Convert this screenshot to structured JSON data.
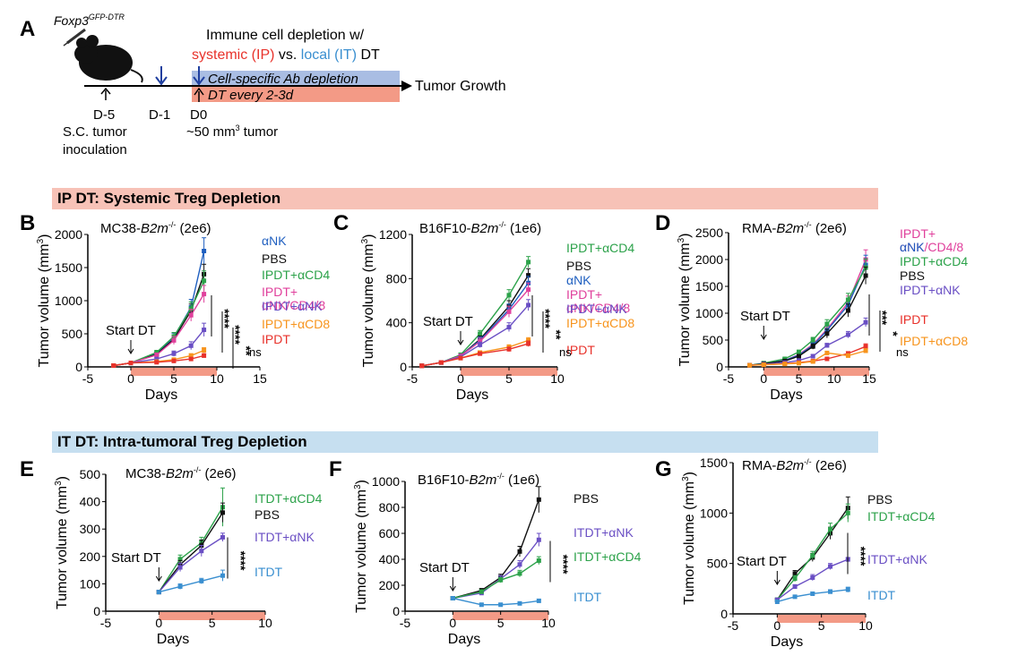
{
  "figure": {
    "panel_a": {
      "letter": "A",
      "mouse_label": "Foxp3",
      "mouse_label_sup": "GFP-DTR",
      "title_line1": "Immune cell depletion w/",
      "title_systemic": "systemic (IP)",
      "title_vs": " vs. ",
      "title_local": "local (IT)",
      "title_dt": " DT",
      "bar_ab": "Cell-specific Ab depletion",
      "bar_dt": "DT every 2-3d",
      "tumor_growth": "Tumor Growth",
      "day_m5": "D-5",
      "day_m1": "D-1",
      "day_0": "D0",
      "inoc_line1": "S.C. tumor",
      "inoc_line2": "inoculation",
      "tumor_size": "~50 mm",
      "tumor_size_sup": "3",
      "tumor_size_suffix": " tumor",
      "colors": {
        "systemic": "#e8322b",
        "local": "#3a8fd0",
        "ab_bar": "#a9bde3",
        "dt_bar": "#f39a86",
        "arrow": "#1f3f9f"
      }
    },
    "banner_ip": "IP DT: Systemic Treg Depletion",
    "banner_it": "IT DT: Intra-tumoral Treg Depletion"
  },
  "common": {
    "xlabel": "Days",
    "ylabel": "Tumor volume (mm",
    "ylabel_sup": "3",
    "ylabel_end": ")",
    "start_dt": "Start DT",
    "ns": "ns"
  },
  "chart_data": [
    {
      "panel": "B",
      "type": "line",
      "title_pre": "MC38-",
      "title_it": "B2m",
      "title_sup": "-/-",
      "title_post": " (2e6)",
      "xlim": [
        -5,
        15
      ],
      "ylim": [
        0,
        2000
      ],
      "xticks": [
        -5,
        0,
        5,
        10,
        15
      ],
      "yticks": [
        0,
        500,
        1000,
        1500,
        2000
      ],
      "dt_bar": [
        0,
        10
      ],
      "series": [
        {
          "name": "αNK",
          "color": "#1f5fc0",
          "x": [
            -2,
            0,
            3,
            5,
            7,
            8.5
          ],
          "y": [
            20,
            60,
            200,
            450,
            900,
            1750
          ],
          "err": [
            5,
            10,
            30,
            60,
            120,
            200
          ]
        },
        {
          "name": "PBS",
          "color": "#111111",
          "x": [
            -2,
            0,
            3,
            5,
            7,
            8.5
          ],
          "y": [
            20,
            60,
            190,
            420,
            850,
            1400
          ],
          "err": [
            5,
            10,
            30,
            60,
            100,
            150
          ]
        },
        {
          "name": "IPDT+αCD4",
          "color": "#2ca24a",
          "x": [
            -2,
            0,
            3,
            5,
            7,
            8.5
          ],
          "y": [
            20,
            60,
            220,
            460,
            880,
            1300
          ],
          "err": [
            5,
            10,
            30,
            60,
            100,
            150
          ]
        },
        {
          "name": "IPDT+ αNK/CD4/8",
          "color": "#e0409c",
          "x": [
            -2,
            0,
            3,
            5,
            7,
            8.5
          ],
          "y": [
            20,
            60,
            180,
            400,
            780,
            1100
          ],
          "err": [
            5,
            10,
            30,
            60,
            90,
            130
          ]
        },
        {
          "name": "IPDT+αNK",
          "color": "#6a4fc4",
          "x": [
            -2,
            0,
            3,
            5,
            7,
            8.5
          ],
          "y": [
            20,
            60,
            120,
            200,
            320,
            560
          ],
          "err": [
            5,
            10,
            20,
            40,
            60,
            100
          ]
        },
        {
          "name": "IPDT+αCD8",
          "color": "#f7941d",
          "x": [
            -2,
            0,
            3,
            5,
            7,
            8.5
          ],
          "y": [
            20,
            60,
            80,
            110,
            170,
            250
          ],
          "err": [
            5,
            10,
            15,
            20,
            30,
            40
          ]
        },
        {
          "name": "IPDT",
          "color": "#e8322b",
          "x": [
            -2,
            0,
            3,
            5,
            7,
            8.5
          ],
          "y": [
            20,
            60,
            70,
            90,
            120,
            170
          ],
          "err": [
            5,
            10,
            10,
            15,
            20,
            30
          ]
        }
      ],
      "sig": [
        "****",
        "****",
        "**",
        "ns"
      ]
    },
    {
      "panel": "C",
      "type": "line",
      "title_pre": "B16F10-",
      "title_it": "B2m",
      "title_sup": "-/-",
      "title_post": " (1e6)",
      "xlim": [
        -5,
        10
      ],
      "ylim": [
        0,
        1200
      ],
      "xticks": [
        -5,
        0,
        5,
        10
      ],
      "yticks": [
        0,
        400,
        800,
        1200
      ],
      "dt_bar": [
        0,
        10
      ],
      "series": [
        {
          "name": "IPDT+αCD4",
          "color": "#2ca24a",
          "x": [
            -4,
            -2,
            0,
            2,
            5,
            7
          ],
          "y": [
            10,
            40,
            110,
            300,
            650,
            950
          ],
          "err": [
            3,
            8,
            15,
            30,
            50,
            50
          ]
        },
        {
          "name": "PBS",
          "color": "#111111",
          "x": [
            -4,
            -2,
            0,
            2,
            5,
            7
          ],
          "y": [
            10,
            40,
            100,
            250,
            550,
            830
          ],
          "err": [
            3,
            8,
            15,
            30,
            50,
            60
          ]
        },
        {
          "name": "αNK",
          "color": "#1f5fc0",
          "x": [
            -4,
            -2,
            0,
            2,
            5,
            7
          ],
          "y": [
            10,
            40,
            100,
            240,
            520,
            760
          ],
          "err": [
            3,
            8,
            15,
            30,
            50,
            60
          ]
        },
        {
          "name": "IPDT+ αNK/CD4/8",
          "color": "#e0409c",
          "x": [
            -4,
            -2,
            0,
            2,
            5,
            7
          ],
          "y": [
            10,
            40,
            100,
            230,
            500,
            700
          ],
          "err": [
            3,
            8,
            15,
            30,
            50,
            60
          ]
        },
        {
          "name": "IPDT+αNK",
          "color": "#6a4fc4",
          "x": [
            -4,
            -2,
            0,
            2,
            5,
            7
          ],
          "y": [
            10,
            40,
            90,
            200,
            360,
            560
          ],
          "err": [
            3,
            8,
            12,
            25,
            40,
            50
          ]
        },
        {
          "name": "IPDT+αCD8",
          "color": "#f7941d",
          "x": [
            -4,
            -2,
            0,
            2,
            5,
            7
          ],
          "y": [
            10,
            40,
            80,
            130,
            180,
            240
          ],
          "err": [
            3,
            8,
            10,
            15,
            20,
            25
          ]
        },
        {
          "name": "IPDT",
          "color": "#e8322b",
          "x": [
            -4,
            -2,
            0,
            2,
            5,
            7
          ],
          "y": [
            10,
            40,
            80,
            120,
            160,
            210
          ],
          "err": [
            3,
            8,
            10,
            15,
            20,
            25
          ]
        }
      ],
      "sig": [
        "****",
        "**",
        "ns"
      ]
    },
    {
      "panel": "D",
      "type": "line",
      "title_pre": "RMA-",
      "title_it": "B2m",
      "title_sup": "-/-",
      "title_post": " (2e6)",
      "xlim": [
        -5,
        15
      ],
      "ylim": [
        0,
        2500
      ],
      "xticks": [
        -5,
        0,
        5,
        10,
        15
      ],
      "yticks": [
        0,
        500,
        1000,
        1500,
        2000,
        2500
      ],
      "dt_bar": [
        0,
        15
      ],
      "series": [
        {
          "name": "IPDT+ αNK/CD4/8",
          "color": "#e0409c",
          "x": [
            -2,
            0,
            3,
            5,
            7,
            9,
            12,
            14.5
          ],
          "y": [
            30,
            60,
            120,
            230,
            420,
            700,
            1200,
            2000
          ],
          "err": [
            5,
            10,
            20,
            30,
            50,
            80,
            120,
            180
          ]
        },
        {
          "name": "αNK",
          "color": "#1f5fc0",
          "x": [
            -2,
            0,
            3,
            5,
            7,
            9,
            12,
            14.5
          ],
          "y": [
            30,
            60,
            120,
            220,
            400,
            680,
            1150,
            1900
          ],
          "err": [
            5,
            10,
            20,
            30,
            50,
            80,
            120,
            180
          ]
        },
        {
          "name": "IPDT+αCD4",
          "color": "#2ca24a",
          "x": [
            -2,
            0,
            3,
            5,
            7,
            9,
            12,
            14.5
          ],
          "y": [
            30,
            70,
            150,
            280,
            500,
            800,
            1250,
            1850
          ],
          "err": [
            5,
            10,
            20,
            30,
            50,
            80,
            120,
            160
          ]
        },
        {
          "name": "PBS",
          "color": "#111111",
          "x": [
            -2,
            0,
            3,
            5,
            7,
            9,
            12,
            14.5
          ],
          "y": [
            30,
            60,
            110,
            200,
            380,
            620,
            1050,
            1700
          ],
          "err": [
            5,
            10,
            20,
            30,
            50,
            80,
            120,
            160
          ]
        },
        {
          "name": "IPDT+αNK",
          "color": "#6a4fc4",
          "x": [
            -2,
            0,
            3,
            5,
            7,
            9,
            12,
            14.5
          ],
          "y": [
            30,
            50,
            80,
            120,
            200,
            400,
            600,
            830
          ],
          "err": [
            5,
            10,
            15,
            20,
            30,
            40,
            60,
            80
          ]
        },
        {
          "name": "IPDT",
          "color": "#e8322b",
          "x": [
            -2,
            0,
            3,
            5,
            7,
            9,
            12,
            14.5
          ],
          "y": [
            30,
            40,
            60,
            80,
            110,
            150,
            250,
            380
          ],
          "err": [
            5,
            8,
            10,
            15,
            20,
            25,
            35,
            50
          ]
        },
        {
          "name": "IPDT+αCD8",
          "color": "#f7941d",
          "x": [
            -2,
            0,
            3,
            5,
            7,
            9,
            12,
            14.5
          ],
          "y": [
            30,
            40,
            55,
            70,
            100,
            260,
            210,
            300
          ],
          "err": [
            5,
            8,
            10,
            15,
            20,
            30,
            35,
            40
          ]
        }
      ],
      "sig": [
        "***",
        "*",
        "ns"
      ]
    },
    {
      "panel": "E",
      "type": "line",
      "title_pre": "MC38-",
      "title_it": "B2m",
      "title_sup": "-/-",
      "title_post": " (2e6)",
      "xlim": [
        -5,
        10
      ],
      "ylim": [
        0,
        500
      ],
      "xticks": [
        -5,
        0,
        5,
        10
      ],
      "yticks": [
        0,
        100,
        200,
        300,
        400,
        500
      ],
      "dt_bar": [
        0,
        10
      ],
      "series": [
        {
          "name": "ITDT+αCD4",
          "color": "#2ca24a",
          "x": [
            0,
            2,
            4,
            6
          ],
          "y": [
            70,
            190,
            250,
            380
          ],
          "err": [
            5,
            15,
            20,
            70
          ]
        },
        {
          "name": "PBS",
          "color": "#111111",
          "x": [
            0,
            2,
            4,
            6
          ],
          "y": [
            70,
            170,
            240,
            360
          ],
          "err": [
            5,
            15,
            20,
            35
          ]
        },
        {
          "name": "ITDT+αNK",
          "color": "#6a4fc4",
          "x": [
            0,
            2,
            4,
            6
          ],
          "y": [
            70,
            160,
            220,
            270
          ],
          "err": [
            5,
            15,
            20,
            15
          ]
        },
        {
          "name": "ITDT",
          "color": "#3a8fd0",
          "x": [
            0,
            2,
            4,
            6
          ],
          "y": [
            70,
            90,
            110,
            130
          ],
          "err": [
            5,
            10,
            10,
            20
          ]
        }
      ],
      "sig": [
        "****"
      ]
    },
    {
      "panel": "F",
      "type": "line",
      "title_pre": "B16F10-",
      "title_it": "B2m",
      "title_sup": "-/-",
      "title_post": " (1e6)",
      "xlim": [
        -5,
        10
      ],
      "ylim": [
        0,
        1000
      ],
      "xticks": [
        -5,
        0,
        5,
        10
      ],
      "yticks": [
        0,
        200,
        400,
        600,
        800,
        1000
      ],
      "dt_bar": [
        0,
        10
      ],
      "series": [
        {
          "name": "PBS",
          "color": "#111111",
          "x": [
            0,
            3,
            5,
            7,
            9
          ],
          "y": [
            100,
            160,
            260,
            460,
            860
          ],
          "err": [
            10,
            15,
            25,
            40,
            100
          ]
        },
        {
          "name": "ITDT+αNK",
          "color": "#6a4fc4",
          "x": [
            0,
            3,
            5,
            7,
            9
          ],
          "y": [
            100,
            140,
            250,
            360,
            550
          ],
          "err": [
            10,
            15,
            25,
            30,
            50
          ]
        },
        {
          "name": "ITDT+αCD4",
          "color": "#2ca24a",
          "x": [
            0,
            3,
            5,
            7,
            9
          ],
          "y": [
            100,
            150,
            240,
            290,
            390
          ],
          "err": [
            10,
            15,
            20,
            25,
            30
          ]
        },
        {
          "name": "ITDT",
          "color": "#3a8fd0",
          "x": [
            0,
            3,
            5,
            7,
            9
          ],
          "y": [
            100,
            50,
            50,
            60,
            80
          ],
          "err": [
            10,
            8,
            8,
            8,
            10
          ]
        }
      ],
      "sig": [
        "****"
      ]
    },
    {
      "panel": "G",
      "type": "line",
      "title_pre": "RMA-",
      "title_it": "B2m",
      "title_sup": "-/-",
      "title_post": " (2e6)",
      "xlim": [
        -5,
        10
      ],
      "ylim": [
        0,
        1500
      ],
      "xticks": [
        -5,
        0,
        5,
        10
      ],
      "yticks": [
        0,
        500,
        1000,
        1500
      ],
      "dt_bar": [
        0,
        10
      ],
      "series": [
        {
          "name": "PBS",
          "color": "#111111",
          "x": [
            0,
            2,
            4,
            6,
            8
          ],
          "y": [
            140,
            400,
            560,
            800,
            1050
          ],
          "err": [
            10,
            30,
            40,
            60,
            110
          ]
        },
        {
          "name": "ITDT+αCD4",
          "color": "#2ca24a",
          "x": [
            0,
            2,
            4,
            6,
            8
          ],
          "y": [
            140,
            350,
            580,
            840,
            1000
          ],
          "err": [
            10,
            30,
            40,
            60,
            90
          ]
        },
        {
          "name": "ITDT+αNK",
          "color": "#6a4fc4",
          "x": [
            0,
            2,
            4,
            6,
            8
          ],
          "y": [
            140,
            270,
            360,
            470,
            540
          ],
          "err": [
            10,
            20,
            30,
            30,
            20
          ]
        },
        {
          "name": "ITDT",
          "color": "#3a8fd0",
          "x": [
            0,
            2,
            4,
            6,
            8
          ],
          "y": [
            120,
            170,
            200,
            220,
            240
          ],
          "err": [
            10,
            15,
            15,
            20,
            25
          ]
        }
      ],
      "sig": [
        "****"
      ]
    }
  ]
}
